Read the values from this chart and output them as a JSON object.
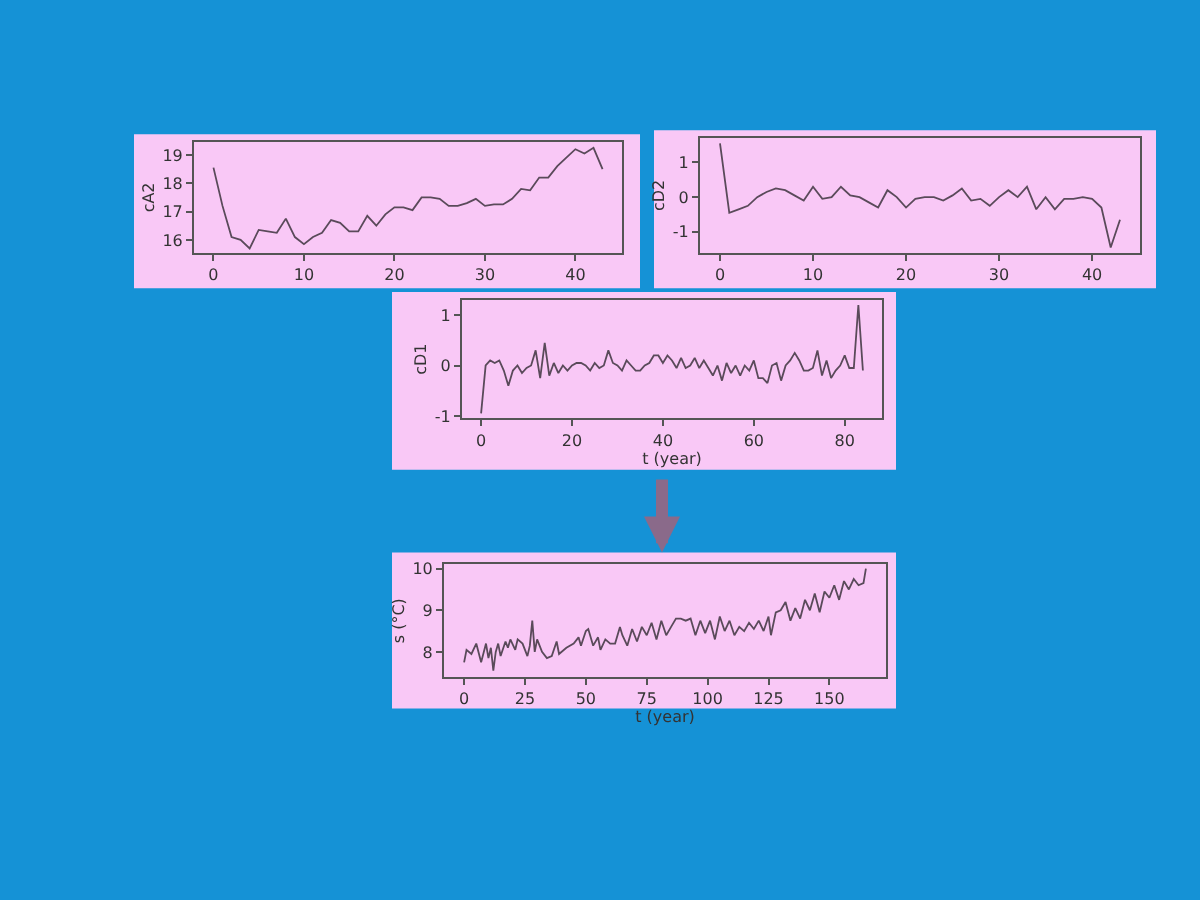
{
  "chart_data": [
    {
      "type": "line",
      "ylabel": "cA2",
      "color": "#5a4a5a",
      "grid": false,
      "x": [
        0,
        1,
        2,
        3,
        4,
        5,
        6,
        7,
        8,
        9,
        10,
        11,
        12,
        13,
        14,
        15,
        16,
        17,
        18,
        19,
        20,
        21,
        22,
        23,
        24,
        25,
        26,
        27,
        28,
        29,
        30,
        31,
        32,
        33,
        34,
        35,
        36,
        37,
        38,
        39,
        40,
        41,
        42,
        43
      ],
      "values": [
        18.55,
        17.2,
        16.1,
        16.0,
        15.7,
        16.35,
        16.3,
        16.25,
        16.75,
        16.1,
        15.85,
        16.1,
        16.25,
        16.7,
        16.6,
        16.3,
        16.3,
        16.85,
        16.5,
        16.9,
        17.15,
        17.15,
        17.05,
        17.5,
        17.5,
        17.45,
        17.2,
        17.2,
        17.3,
        17.45,
        17.2,
        17.25,
        17.25,
        17.45,
        17.8,
        17.75,
        18.2,
        18.2,
        18.6,
        18.9,
        19.2,
        19.05,
        19.25,
        18.5
      ],
      "xlim": [
        -2.15,
        45.15
      ],
      "ylim": [
        15.55,
        19.45
      ],
      "xticks": [
        0,
        10,
        20,
        30,
        40
      ],
      "yticks": [
        16,
        17,
        18,
        19
      ]
    },
    {
      "type": "line",
      "ylabel": "cD2",
      "color": "#5a4a5a",
      "grid": false,
      "x": [
        0,
        1,
        2,
        3,
        4,
        5,
        6,
        7,
        8,
        9,
        10,
        11,
        12,
        13,
        14,
        15,
        16,
        17,
        18,
        19,
        20,
        21,
        22,
        23,
        24,
        25,
        26,
        27,
        28,
        29,
        30,
        31,
        32,
        33,
        34,
        35,
        36,
        37,
        38,
        39,
        40,
        41,
        42,
        43
      ],
      "values": [
        1.55,
        -0.45,
        -0.35,
        -0.25,
        0.0,
        0.15,
        0.25,
        0.2,
        0.05,
        -0.1,
        0.3,
        -0.05,
        0.0,
        0.3,
        0.05,
        0.0,
        -0.15,
        -0.3,
        0.2,
        0.0,
        -0.3,
        -0.05,
        0.0,
        0.0,
        -0.1,
        0.05,
        0.25,
        -0.1,
        -0.05,
        -0.25,
        0.0,
        0.2,
        0.0,
        0.3,
        -0.35,
        0.0,
        -0.35,
        -0.05,
        -0.05,
        0.0,
        -0.05,
        -0.3,
        -1.45,
        -0.65
      ],
      "xlim": [
        -2.15,
        45.15
      ],
      "ylim": [
        -1.6,
        1.7
      ],
      "xticks": [
        0,
        10,
        20,
        30,
        40
      ],
      "yticks": [
        -1,
        0,
        1
      ]
    },
    {
      "type": "line",
      "ylabel": "cD1",
      "xlabel": "t (year)",
      "color": "#5a4a5a",
      "grid": false,
      "x": [
        0,
        1,
        2,
        3,
        4,
        5,
        6,
        7,
        8,
        9,
        10,
        11,
        12,
        13,
        14,
        15,
        16,
        17,
        18,
        19,
        20,
        21,
        22,
        23,
        24,
        25,
        26,
        27,
        28,
        29,
        30,
        31,
        32,
        33,
        34,
        35,
        36,
        37,
        38,
        39,
        40,
        41,
        42,
        43,
        44,
        45,
        46,
        47,
        48,
        49,
        50,
        51,
        52,
        53,
        54,
        55,
        56,
        57,
        58,
        59,
        60,
        61,
        62,
        63,
        64,
        65,
        66,
        67,
        68,
        69,
        70,
        71,
        72,
        73,
        74,
        75,
        76,
        77,
        78,
        79,
        80,
        81,
        82,
        83,
        84
      ],
      "values": [
        -0.95,
        0.0,
        0.1,
        0.05,
        0.1,
        -0.1,
        -0.4,
        -0.1,
        0.0,
        -0.15,
        -0.05,
        0.0,
        0.3,
        -0.25,
        0.45,
        -0.2,
        0.05,
        -0.15,
        0.0,
        -0.1,
        0.0,
        0.05,
        0.05,
        0.0,
        -0.1,
        0.05,
        -0.05,
        0.0,
        0.3,
        0.05,
        0.0,
        -0.1,
        0.1,
        0.0,
        -0.1,
        -0.1,
        0.0,
        0.05,
        0.2,
        0.2,
        0.05,
        0.2,
        0.1,
        -0.05,
        0.15,
        -0.05,
        0.0,
        0.15,
        -0.05,
        0.1,
        -0.05,
        -0.2,
        0.0,
        -0.3,
        0.05,
        -0.15,
        0.0,
        -0.2,
        0.0,
        -0.1,
        0.1,
        -0.25,
        -0.25,
        -0.35,
        0.0,
        0.05,
        -0.3,
        0.0,
        0.1,
        0.25,
        0.1,
        -0.1,
        -0.1,
        -0.05,
        0.3,
        -0.2,
        0.1,
        -0.25,
        -0.1,
        0.0,
        0.2,
        -0.05,
        -0.05,
        1.2,
        -0.1
      ],
      "xlim": [
        -4.2,
        88.2
      ],
      "ylim": [
        -1.05,
        1.3
      ],
      "xticks": [
        0,
        20,
        40,
        60,
        80
      ],
      "yticks": [
        -1,
        0,
        1
      ]
    },
    {
      "type": "line",
      "ylabel": "s (°C)",
      "xlabel": "t (year)",
      "color": "#5a4a5a",
      "grid": false,
      "x": [
        0,
        1,
        3,
        5,
        7,
        9,
        10,
        11,
        12,
        13,
        14,
        15,
        17,
        18,
        19,
        21,
        22,
        24,
        26,
        27,
        28,
        29,
        30,
        32,
        34,
        36,
        38,
        39,
        42,
        45,
        47,
        48,
        50,
        51,
        53,
        55,
        56,
        58,
        60,
        62,
        64,
        65,
        67,
        69,
        71,
        73,
        75,
        77,
        79,
        81,
        83,
        85,
        87,
        89,
        91,
        93,
        95,
        97,
        99,
        101,
        103,
        105,
        107,
        109,
        111,
        113,
        115,
        117,
        119,
        121,
        123,
        125,
        126,
        128,
        130,
        132,
        134,
        136,
        138,
        140,
        142,
        144,
        146,
        148,
        150,
        152,
        154,
        156,
        158,
        160,
        162,
        164,
        165
      ],
      "values": [
        7.75,
        8.05,
        7.95,
        8.2,
        7.75,
        8.2,
        7.85,
        8.1,
        7.55,
        8.0,
        8.2,
        7.9,
        8.25,
        8.1,
        8.3,
        8.05,
        8.3,
        8.2,
        7.9,
        8.15,
        8.75,
        8.0,
        8.3,
        8.0,
        7.85,
        7.9,
        8.25,
        7.95,
        8.1,
        8.2,
        8.35,
        8.15,
        8.5,
        8.55,
        8.15,
        8.35,
        8.05,
        8.3,
        8.2,
        8.2,
        8.6,
        8.4,
        8.15,
        8.55,
        8.25,
        8.6,
        8.4,
        8.7,
        8.3,
        8.75,
        8.4,
        8.6,
        8.8,
        8.8,
        8.75,
        8.8,
        8.4,
        8.75,
        8.45,
        8.75,
        8.3,
        8.85,
        8.5,
        8.75,
        8.4,
        8.6,
        8.5,
        8.7,
        8.55,
        8.75,
        8.5,
        8.85,
        8.4,
        8.95,
        9.0,
        9.2,
        8.75,
        9.05,
        8.8,
        9.25,
        9.0,
        9.4,
        8.95,
        9.45,
        9.3,
        9.6,
        9.25,
        9.7,
        9.5,
        9.75,
        9.6,
        9.65,
        10.0
      ],
      "xlim": [
        -8.25,
        173.25
      ],
      "ylim": [
        7.4,
        10.1
      ],
      "xticks": [
        0,
        25,
        50,
        75,
        100,
        125,
        150
      ],
      "yticks": [
        8,
        9,
        10
      ]
    }
  ]
}
